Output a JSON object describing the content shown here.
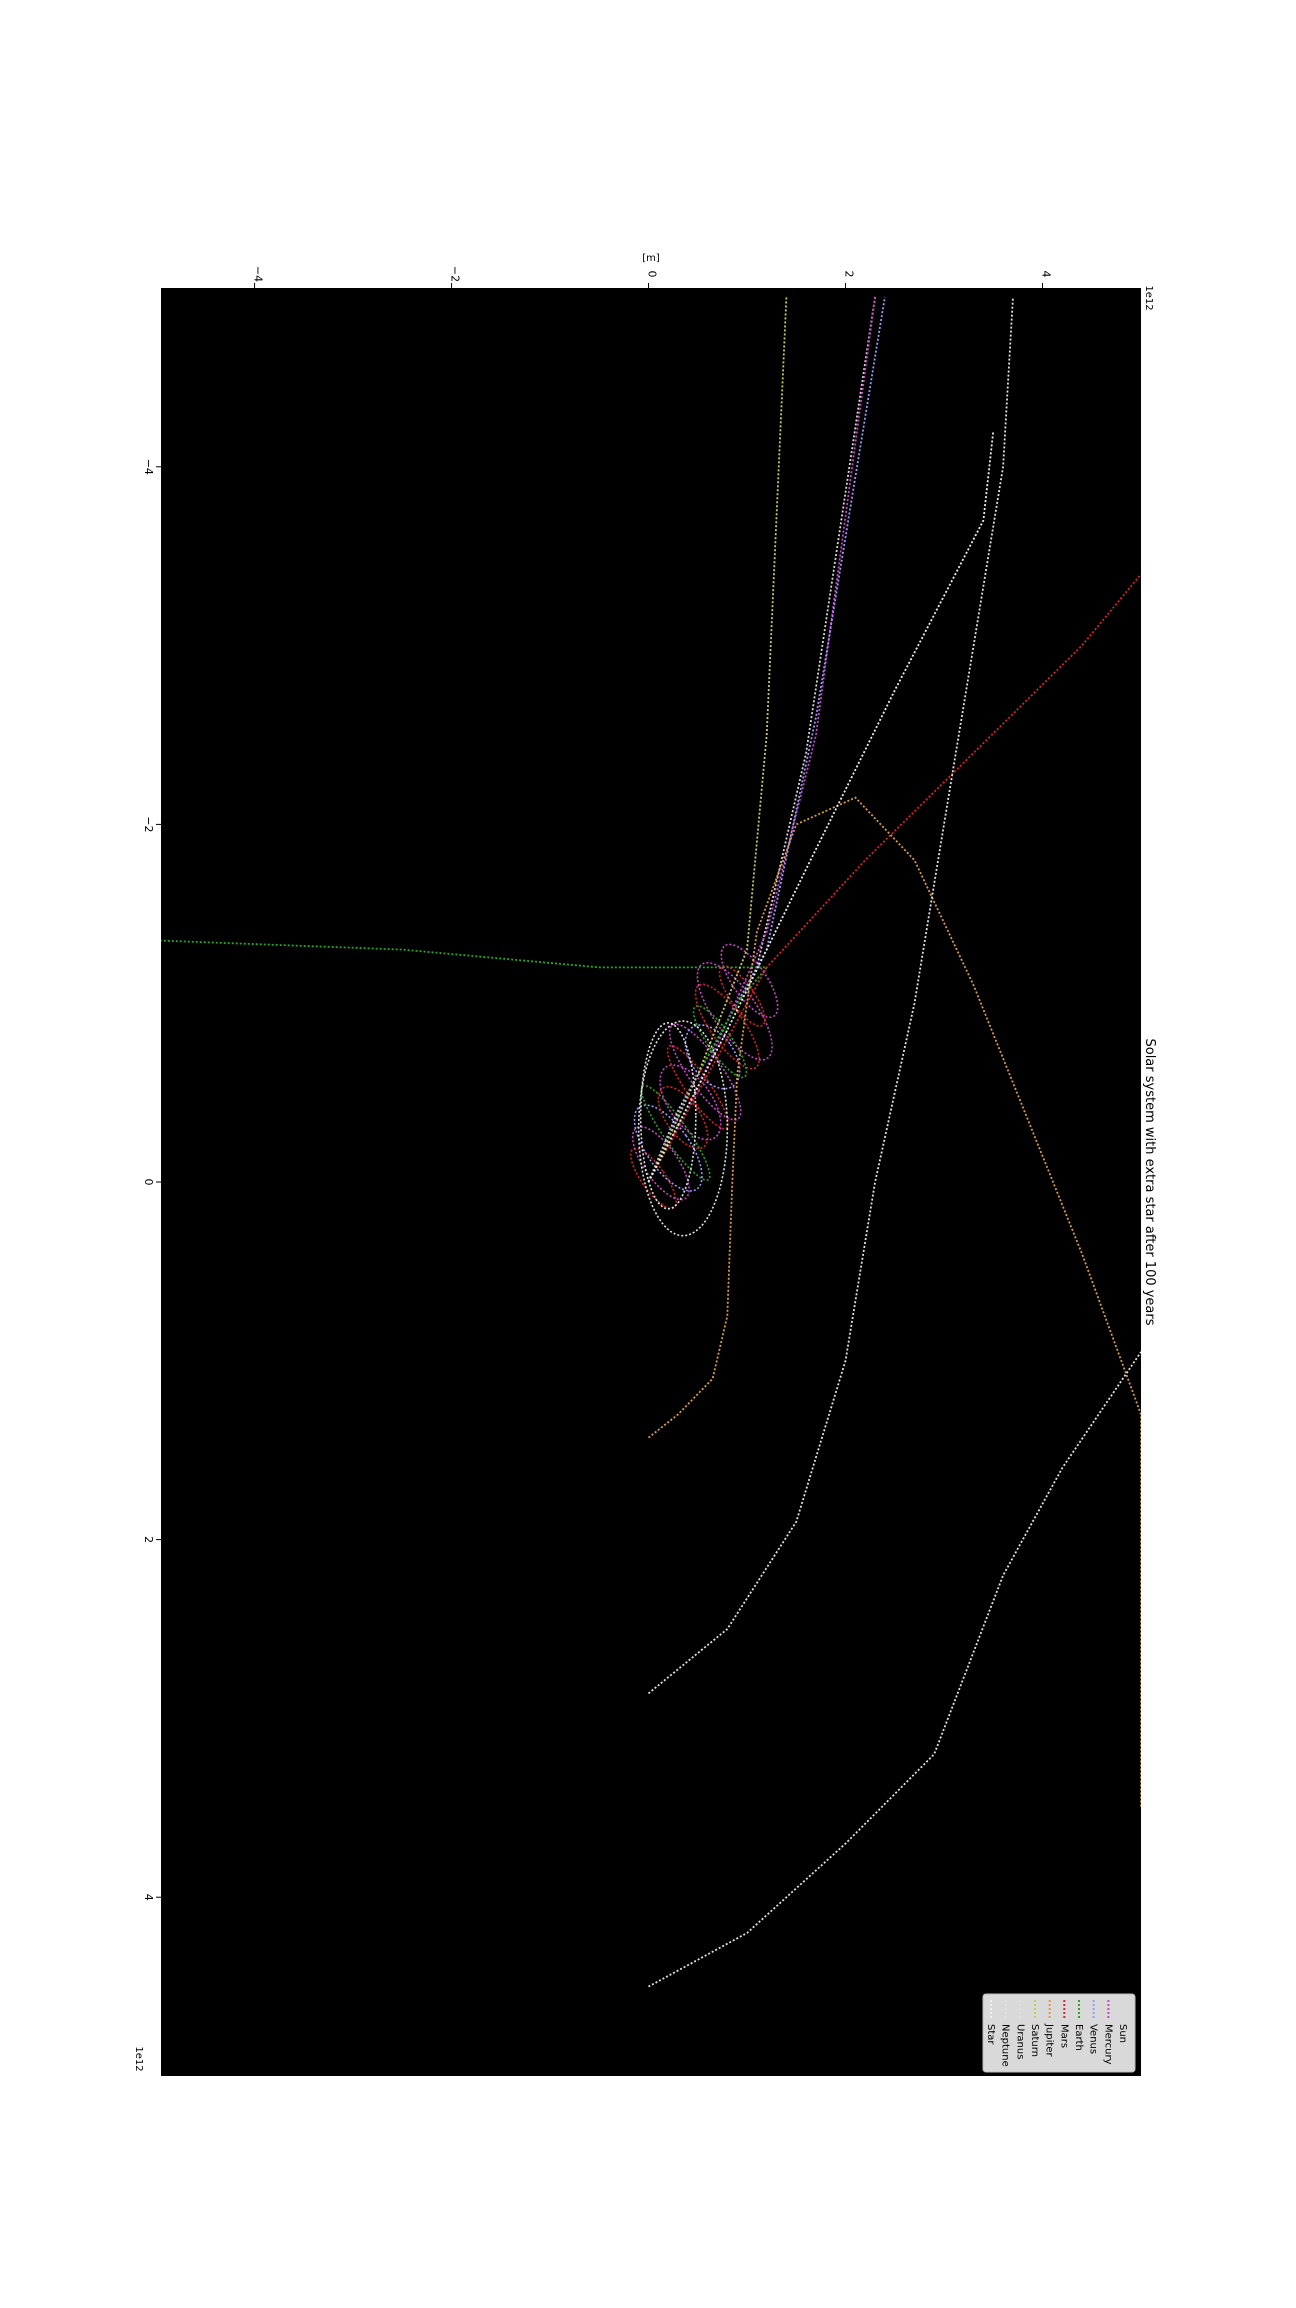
{
  "chart_data": {
    "type": "line",
    "title": "Solar system with extra star after 100 years",
    "xlabel": "[m]",
    "ylabel": "",
    "x_offset_text": "1e12",
    "y_offset_text": "1e12",
    "xlim": [
      -4.95,
      5.0
    ],
    "ylim": [
      -5.0,
      5.0
    ],
    "x_ticks": [
      -4,
      -2,
      0,
      2,
      4
    ],
    "y_ticks": [
      -4,
      -2,
      0,
      2,
      4
    ],
    "x_tick_labels": [
      "−4",
      "−2",
      "0",
      "2",
      "4"
    ],
    "y_tick_labels": [
      "−4",
      "−2",
      "0",
      "2",
      "4"
    ],
    "grid": false,
    "legend_position": "bottom-right",
    "rotated": "90deg-counterclockwise",
    "colors": {
      "plot_background": "#000000",
      "page_background": "#ffffff",
      "legend_background": "#d9d9d9"
    },
    "series": [
      {
        "name": "Sun",
        "color": "#d8d8d8",
        "points": [
          [
            0.0,
            0.0
          ],
          [
            0.3,
            -0.4
          ],
          [
            0.7,
            -0.8
          ],
          [
            1.1,
            -1.2
          ],
          [
            1.6,
            -2.4
          ],
          [
            2.3,
            -4.95
          ]
        ]
      },
      {
        "name": "Mercury",
        "color": "#cc44cc",
        "points": [
          [
            0.0,
            0.0
          ],
          [
            0.4,
            -0.4
          ],
          [
            0.8,
            -0.9
          ],
          [
            1.2,
            -1.4
          ],
          [
            1.7,
            -2.5
          ],
          [
            2.3,
            -4.95
          ]
        ]
      },
      {
        "name": "Venus",
        "color": "#9999ff",
        "points": [
          [
            0.0,
            0.0
          ],
          [
            0.4,
            -0.5
          ],
          [
            0.8,
            -0.9
          ],
          [
            1.2,
            -1.3
          ],
          [
            1.7,
            -2.6
          ],
          [
            2.4,
            -4.95
          ]
        ]
      },
      {
        "name": "Earth",
        "color": "#22aa22",
        "points": [
          [
            0.0,
            0.0
          ],
          [
            0.5,
            -0.6
          ],
          [
            0.9,
            -1.0
          ],
          [
            1.2,
            -1.2
          ],
          [
            -0.5,
            -1.2
          ],
          [
            -2.5,
            -1.3
          ],
          [
            -4.95,
            -1.35
          ]
        ]
      },
      {
        "name": "Mars",
        "color": "#dd2222",
        "points": [
          [
            0.0,
            0.0
          ],
          [
            0.4,
            -0.4
          ],
          [
            0.8,
            -0.8
          ],
          [
            1.2,
            -1.2
          ],
          [
            2.2,
            -1.8
          ],
          [
            3.3,
            -2.4
          ],
          [
            4.4,
            -3.0
          ],
          [
            5.0,
            -3.4
          ]
        ]
      },
      {
        "name": "Jupiter",
        "color": "#dd9944",
        "points": [
          [
            0.0,
            1.43
          ],
          [
            0.3,
            1.3
          ],
          [
            0.65,
            1.1
          ],
          [
            0.8,
            0.75
          ],
          [
            0.85,
            0.0
          ],
          [
            0.9,
            -0.6
          ],
          [
            1.1,
            -1.4
          ],
          [
            1.5,
            -2.0
          ],
          [
            2.1,
            -2.15
          ],
          [
            2.7,
            -1.8
          ],
          [
            3.3,
            -1.1
          ],
          [
            4.4,
            0.4
          ],
          [
            5.0,
            1.3
          ],
          [
            5.0,
            3.5
          ]
        ]
      },
      {
        "name": "Saturn",
        "color": "#cccc55",
        "points": [
          [
            0.0,
            0.0
          ],
          [
            0.5,
            -0.6
          ],
          [
            1.0,
            -1.3
          ],
          [
            1.2,
            -2.5
          ],
          [
            1.4,
            -4.95
          ]
        ]
      },
      {
        "name": "Uranus",
        "color": "#e0e0e0",
        "points": [
          [
            0.0,
            2.86
          ],
          [
            0.8,
            2.5
          ],
          [
            1.5,
            1.9
          ],
          [
            2.0,
            1.0
          ],
          [
            2.3,
            0.0
          ],
          [
            2.7,
            -1.0
          ],
          [
            3.0,
            -2.0
          ],
          [
            3.3,
            -3.0
          ],
          [
            3.6,
            -4.0
          ],
          [
            3.7,
            -4.95
          ]
        ]
      },
      {
        "name": "Neptune",
        "color": "#e0e0e0",
        "points": [
          [
            0.0,
            4.5
          ],
          [
            1.0,
            4.2
          ],
          [
            2.0,
            3.7
          ],
          [
            2.9,
            3.2
          ],
          [
            3.6,
            2.2
          ],
          [
            4.2,
            1.6
          ],
          [
            5.0,
            0.95
          ]
        ]
      },
      {
        "name": "Star",
        "color": "#eeeeee",
        "points": [
          [
            0.0,
            0.0
          ],
          [
            0.8,
            -0.85
          ],
          [
            1.6,
            -1.75
          ],
          [
            2.5,
            -2.75
          ],
          [
            3.4,
            -3.7
          ],
          [
            3.5,
            -4.2
          ]
        ]
      }
    ]
  }
}
